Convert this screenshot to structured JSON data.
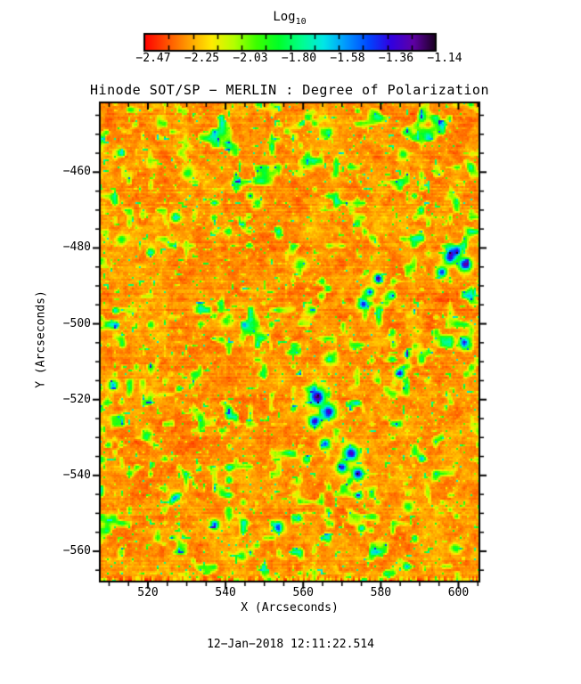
{
  "title": "Hinode SOT/SP − MERLIN : Degree of Polarization",
  "timestamp": "12−Jan−2018 12:11:22.514",
  "colorbar": {
    "title": "Log",
    "title_sub": "10",
    "tick_labels": [
      "−2.47",
      "−2.25",
      "−2.03",
      "−1.80",
      "−1.58",
      "−1.36",
      "−1.14"
    ],
    "segments": 12,
    "colors": [
      "#ff0000",
      "#ff5000",
      "#ffa000",
      "#ffeb00",
      "#b4ff00",
      "#3cff00",
      "#00ff28",
      "#00ff8c",
      "#00e7e7",
      "#0096ff",
      "#0046ff",
      "#3200e1",
      "#5f00a5",
      "#19001e"
    ]
  },
  "x_axis": {
    "label": "X (Arcseconds)",
    "tick_labels": [
      "520",
      "540",
      "560",
      "580",
      "600"
    ],
    "tick_values": [
      520,
      540,
      560,
      580,
      600
    ],
    "minor_step": 5
  },
  "y_axis": {
    "label": "Y (Arcseconds)",
    "tick_labels": [
      "−460",
      "−480",
      "−500",
      "−520",
      "−540",
      "−560"
    ],
    "tick_values": [
      -460,
      -480,
      -500,
      -520,
      -540,
      -560
    ],
    "minor_step": 5
  },
  "chart_data": {
    "type": "heatmap",
    "title": "Hinode SOT/SP − MERLIN : Degree of Polarization",
    "xlabel": "X (Arcseconds)",
    "ylabel": "Y (Arcseconds)",
    "x_range": [
      507.6,
      605.4
    ],
    "y_range": [
      -568.0,
      -441.6
    ],
    "grid": false,
    "legend_position": "top-colorbar",
    "value_scale": {
      "label": "Log10 degree of polarization",
      "range": [
        -2.58,
        -1.03
      ],
      "labeled_ticks": [
        -2.47,
        -2.25,
        -2.03,
        -1.8,
        -1.58,
        -1.36,
        -1.14
      ]
    },
    "background_level_log10": -2.36,
    "features": [
      {
        "x": 563.4,
        "y": -519.1,
        "r": 2.2,
        "peak": -1.22
      },
      {
        "x": 566.4,
        "y": -523.1,
        "r": 1.8,
        "peak": -1.25
      },
      {
        "x": 562.7,
        "y": -525.5,
        "r": 1.5,
        "peak": -1.3
      },
      {
        "x": 565.4,
        "y": -531.4,
        "r": 1.3,
        "peak": -1.4
      },
      {
        "x": 572.1,
        "y": -533.9,
        "r": 1.9,
        "peak": -1.25
      },
      {
        "x": 569.8,
        "y": -537.7,
        "r": 1.4,
        "peak": -1.35
      },
      {
        "x": 573.9,
        "y": -539.3,
        "r": 1.6,
        "peak": -1.28
      },
      {
        "x": 584.7,
        "y": -512.8,
        "r": 1.2,
        "peak": -1.35
      },
      {
        "x": 597.6,
        "y": -482.2,
        "r": 1.7,
        "peak": -1.25
      },
      {
        "x": 601.5,
        "y": -484.1,
        "r": 1.7,
        "peak": -1.22
      },
      {
        "x": 595.5,
        "y": -486.2,
        "r": 1.3,
        "peak": -1.4
      },
      {
        "x": 599.5,
        "y": -480.5,
        "r": 1.2,
        "peak": -1.45
      },
      {
        "x": 575.3,
        "y": -494.5,
        "r": 1.4,
        "peak": -1.35
      },
      {
        "x": 576.9,
        "y": -491.4,
        "r": 1.1,
        "peak": -1.42
      },
      {
        "x": 579.2,
        "y": -487.9,
        "r": 1.2,
        "peak": -1.38
      },
      {
        "x": 537.0,
        "y": -552.7,
        "r": 1.2,
        "peak": -1.45
      },
      {
        "x": 553.3,
        "y": -553.4,
        "r": 1.4,
        "peak": -1.4
      },
      {
        "x": 558.6,
        "y": -551.0,
        "r": 1.0,
        "peak": -1.55
      },
      {
        "x": 526.7,
        "y": -545.7,
        "r": 1.0,
        "peak": -1.6
      },
      {
        "x": 510.8,
        "y": -515.9,
        "r": 1.2,
        "peak": -1.6
      },
      {
        "x": 526.9,
        "y": -471.7,
        "r": 1.2,
        "peak": -1.65
      },
      {
        "x": 574.2,
        "y": -545.0,
        "r": 1.0,
        "peak": -1.6
      },
      {
        "x": 574.9,
        "y": -553.7,
        "r": 0.9,
        "peak": -1.65
      },
      {
        "x": 601.1,
        "y": -505.0,
        "r": 1.5,
        "peak": -1.8
      },
      {
        "x": 586.8,
        "y": -548.0,
        "r": 1.3,
        "peak": -1.85
      },
      {
        "x": 530.0,
        "y": -460.0,
        "r": 1.5,
        "peak": -1.9
      },
      {
        "x": 548.0,
        "y": -468.0,
        "r": 1.3,
        "peak": -1.95
      },
      {
        "x": 585.5,
        "y": -455.0,
        "r": 1.2,
        "peak": -1.9
      },
      {
        "x": 513.0,
        "y": -477.5,
        "r": 1.3,
        "peak": -1.9
      },
      {
        "x": 559.0,
        "y": -484.0,
        "r": 1.5,
        "peak": -1.95
      },
      {
        "x": 540.0,
        "y": -499.0,
        "r": 1.3,
        "peak": -1.95
      },
      {
        "x": 519.5,
        "y": -529.0,
        "r": 1.4,
        "peak": -1.9
      },
      {
        "x": 599.0,
        "y": -559.0,
        "r": 1.3,
        "peak": -1.9
      },
      {
        "x": 544.0,
        "y": -561.0,
        "r": 1.2,
        "peak": -1.95
      },
      {
        "x": 567.0,
        "y": -509.0,
        "r": 1.5,
        "peak": -1.85
      }
    ]
  }
}
